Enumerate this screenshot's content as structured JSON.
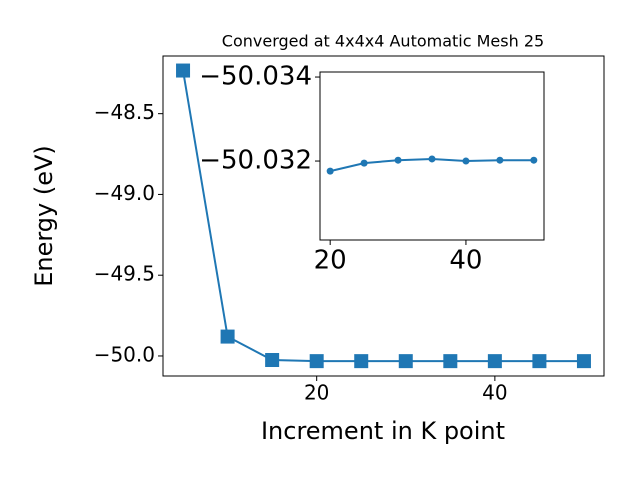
{
  "chart_data": [
    {
      "type": "line",
      "title": "Converged at 4x4x4 Automatic Mesh 25",
      "x_label": "Increment in K point",
      "y_label": "Energy (eV)",
      "x": [
        5,
        10,
        15,
        20,
        25,
        30,
        35,
        40,
        45,
        50
      ],
      "series": [
        {
          "color": "#1f77b4",
          "marker": "square",
          "values": [
            -48.233,
            -49.88,
            -50.025,
            -50.032,
            -50.032,
            -50.032,
            -50.032,
            -50.032,
            -50.032,
            -50.032
          ]
        }
      ],
      "xlim": [
        2.75,
        52.25
      ],
      "ylim": [
        -50.124,
        -48.143
      ],
      "xticks": [
        20,
        40
      ],
      "yticks": [
        {
          "value": -50.0,
          "label": "−50.0"
        },
        {
          "value": -49.5,
          "label": "−49.5"
        },
        {
          "value": -49.0,
          "label": "−49.0"
        },
        {
          "value": -48.5,
          "label": "−48.5"
        }
      ]
    },
    {
      "type": "line",
      "x": [
        20,
        25,
        30,
        35,
        40,
        45,
        50
      ],
      "series": [
        {
          "color": "#1f77b4",
          "marker": "circle",
          "values": [
            -50.03176,
            -50.03195,
            -50.03202,
            -50.03205,
            -50.032,
            -50.03202,
            -50.03202
          ]
        }
      ],
      "xlim": [
        18.5,
        51.5
      ],
      "ylim": [
        -50.03012,
        -50.03412
      ],
      "xticks": [
        20,
        40
      ],
      "yticks": [
        {
          "value": -50.032,
          "label": "−50.032"
        },
        {
          "value": -50.034,
          "label": "−50.034"
        }
      ]
    }
  ]
}
